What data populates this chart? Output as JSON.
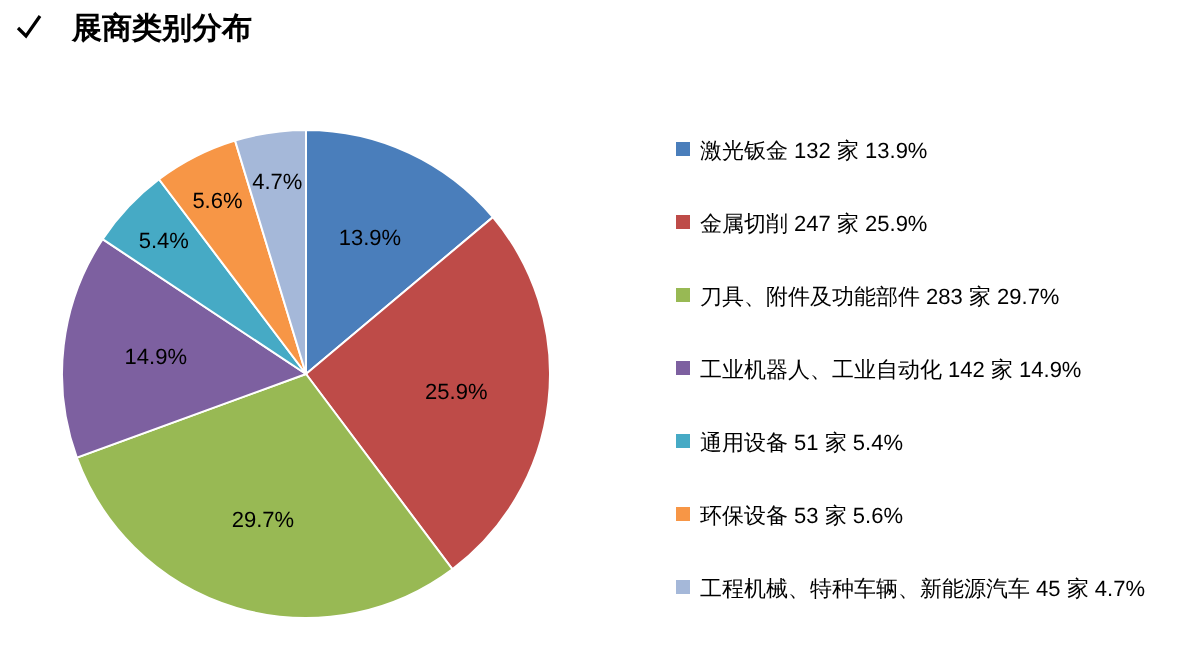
{
  "chart_data": {
    "type": "pie",
    "title": "展商类别分布",
    "categories": [
      "激光钣金 132 家  13.9%",
      "金属切削 247 家  25.9%",
      "刀具、附件及功能部件 283 家  29.7%",
      "工业机器人、工业自动化 142 家  14.9%",
      "通用设备 51 家  5.4%",
      "环保设备 53 家  5.6%",
      "工程机械、特种车辆、新能源汽车 45 家  4.7%"
    ],
    "values": [
      13.9,
      25.9,
      29.7,
      14.9,
      5.4,
      5.6,
      4.7
    ],
    "value_labels": [
      "13.9%",
      "25.9%",
      "29.7%",
      "14.9%",
      "5.4%",
      "5.6%",
      "4.7%"
    ],
    "colors": [
      "#4a7ebb",
      "#be4b48",
      "#98b954",
      "#7d60a0",
      "#46aac5",
      "#f79646",
      "#a5b8d9"
    ],
    "legend": "right"
  }
}
